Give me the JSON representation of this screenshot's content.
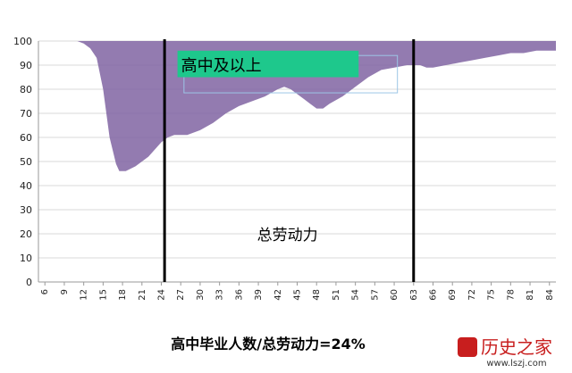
{
  "chart_data": {
    "type": "area",
    "x_ticks": [
      "6",
      "9",
      "12",
      "15",
      "18",
      "21",
      "24",
      "27",
      "30",
      "33",
      "36",
      "39",
      "42",
      "45",
      "48",
      "51",
      "54",
      "57",
      "60",
      "63",
      "66",
      "69",
      "72",
      "75",
      "78",
      "81",
      "84"
    ],
    "y_ticks": [
      "0",
      "10",
      "20",
      "30",
      "40",
      "50",
      "60",
      "70",
      "80",
      "90",
      "100"
    ],
    "ylim": [
      0,
      100
    ],
    "xlim": [
      5,
      85
    ],
    "grid": true,
    "series": [
      {
        "color": "#8064a2",
        "points": [
          [
            5,
            100
          ],
          [
            11,
            100
          ],
          [
            12,
            99
          ],
          [
            13,
            97
          ],
          [
            14,
            93
          ],
          [
            15,
            80
          ],
          [
            16,
            60
          ],
          [
            17,
            49
          ],
          [
            17.5,
            46
          ],
          [
            18.5,
            46
          ],
          [
            20,
            48
          ],
          [
            22,
            52
          ],
          [
            24,
            58
          ],
          [
            25,
            60
          ],
          [
            26,
            61
          ],
          [
            28,
            61
          ],
          [
            30,
            63
          ],
          [
            32,
            66
          ],
          [
            34,
            70
          ],
          [
            36,
            73
          ],
          [
            38,
            75
          ],
          [
            40,
            77
          ],
          [
            42,
            80
          ],
          [
            43,
            81
          ],
          [
            44,
            80
          ],
          [
            45,
            78
          ],
          [
            46,
            76
          ],
          [
            47,
            74
          ],
          [
            48,
            72
          ],
          [
            49,
            72
          ],
          [
            50,
            74
          ],
          [
            52,
            77
          ],
          [
            54,
            81
          ],
          [
            56,
            85
          ],
          [
            58,
            88
          ],
          [
            60,
            89
          ],
          [
            62,
            90
          ],
          [
            64,
            90
          ],
          [
            65,
            89
          ],
          [
            66,
            89
          ],
          [
            68,
            90
          ],
          [
            70,
            91
          ],
          [
            72,
            92
          ],
          [
            74,
            93
          ],
          [
            76,
            94
          ],
          [
            78,
            95
          ],
          [
            80,
            95
          ],
          [
            82,
            96
          ],
          [
            84,
            96
          ],
          [
            85,
            96
          ]
        ]
      }
    ],
    "vertical_lines_x": [
      24.5,
      63
    ],
    "annotations": {
      "highlight_label": "高中及以上",
      "highlight_color": "#1ec88c",
      "area_label": "总劳动力"
    },
    "caption": "高中毕业人数/总劳动力=24%"
  },
  "watermark": {
    "brand": "历史之家",
    "url": "www.lszj.com"
  }
}
